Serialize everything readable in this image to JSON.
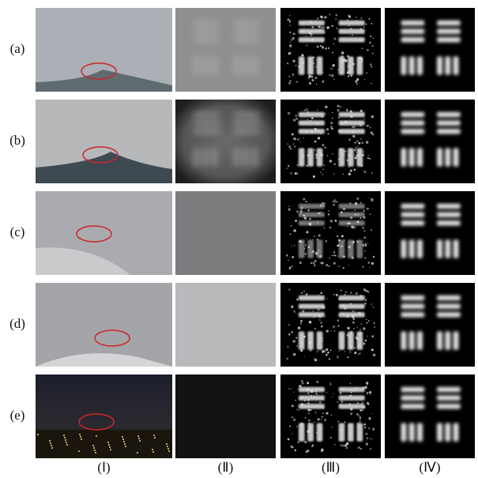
{
  "rows": [
    "(a)",
    "(b)",
    "(c)",
    "(d)",
    "(e)"
  ],
  "columns": [
    "(Ⅰ)",
    "(Ⅱ)",
    "(Ⅲ)",
    "(Ⅳ)"
  ]
}
